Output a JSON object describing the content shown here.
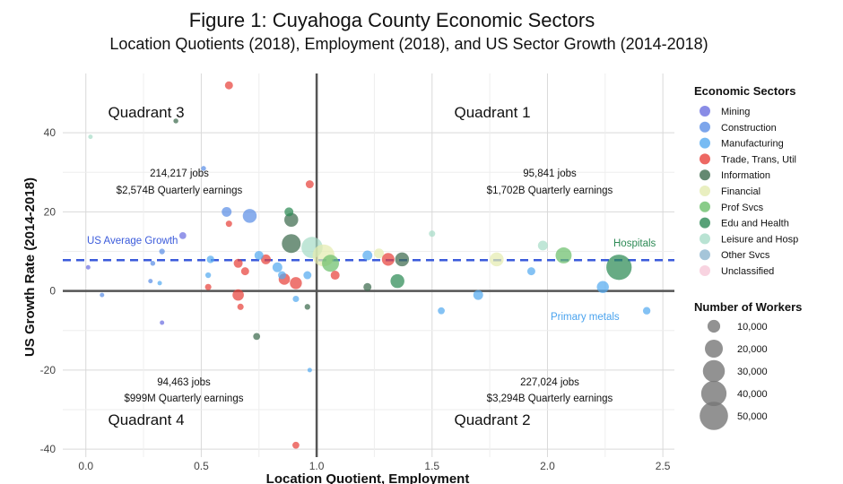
{
  "title": "Figure 1: Cuyahoga County Economic Sectors",
  "subtitle": "Location Quotients (2018), Employment (2018), and US Sector Growth (2014-2018)",
  "quadrants": {
    "q1": {
      "label": "Quadrant 1",
      "jobs": "95,841 jobs",
      "earnings": "$1,702B Quarterly earnings"
    },
    "q2": {
      "label": "Quadrant 2",
      "jobs": "227,024 jobs",
      "earnings": "$3,294B Quarterly earnings"
    },
    "q3": {
      "label": "Quadrant 3",
      "jobs": "214,217 jobs",
      "earnings": "$2,574B Quarterly earnings"
    },
    "q4": {
      "label": "Quadrant 4",
      "jobs": "94,463 jobs",
      "earnings": "$999M Quarterly earnings"
    }
  },
  "annotations": {
    "us_average": "US Average Growth",
    "hospitals": "Hospitals",
    "primary_metals": "Primary metals"
  },
  "legend": {
    "sectors_title": "Economic Sectors",
    "size_title": "Number of Workers"
  },
  "chart_data": {
    "type": "scatter",
    "xlabel": "Location Quotient, Employment",
    "ylabel": "US Growth Rate (2014-2018)",
    "xlim": [
      -0.1,
      2.55
    ],
    "ylim": [
      -42,
      55
    ],
    "x_ticks": [
      0.0,
      0.5,
      1.0,
      1.5,
      2.0,
      2.5
    ],
    "y_ticks": [
      -40,
      -20,
      0,
      20,
      40
    ],
    "reference_lines": {
      "x": 1.0,
      "y": 0,
      "us_average_growth": 7.8
    },
    "grid": true,
    "legend_position": "right",
    "sectors": [
      {
        "name": "Mining",
        "color": "#6c6fe0"
      },
      {
        "name": "Construction",
        "color": "#5b8fe6"
      },
      {
        "name": "Manufacturing",
        "color": "#55aaf0"
      },
      {
        "name": "Trade, Trans, Util",
        "color": "#e8423c"
      },
      {
        "name": "Information",
        "color": "#3d6b4d"
      },
      {
        "name": "Financial",
        "color": "#e4ebb0"
      },
      {
        "name": "Prof Svcs",
        "color": "#6cbf6c"
      },
      {
        "name": "Edu and Health",
        "color": "#2d8a55"
      },
      {
        "name": "Leisure and Hosp",
        "color": "#a8dcc8"
      },
      {
        "name": "Other Svcs",
        "color": "#8fb7d0"
      },
      {
        "name": "Unclassified",
        "color": "#f6c8d8"
      }
    ],
    "size_legend": [
      10000,
      20000,
      30000,
      40000,
      50000
    ],
    "size_labels": [
      "10,000",
      "20,000",
      "30,000",
      "40,000",
      "50,000"
    ],
    "points": [
      {
        "s": 3,
        "x": 0.62,
        "y": 52,
        "w": 4000
      },
      {
        "s": 4,
        "x": 0.39,
        "y": 43,
        "w": 1500
      },
      {
        "s": 8,
        "x": 0.02,
        "y": 39,
        "w": 800
      },
      {
        "s": 1,
        "x": 0.51,
        "y": 31,
        "w": 1500
      },
      {
        "s": 3,
        "x": 0.97,
        "y": 27,
        "w": 4000
      },
      {
        "s": 1,
        "x": 0.61,
        "y": 20,
        "w": 6000
      },
      {
        "s": 1,
        "x": 0.71,
        "y": 19,
        "w": 12000
      },
      {
        "s": 4,
        "x": 0.89,
        "y": 18,
        "w": 12000
      },
      {
        "s": 7,
        "x": 0.88,
        "y": 20,
        "w": 5000
      },
      {
        "s": 3,
        "x": 0.62,
        "y": 17,
        "w": 2500
      },
      {
        "s": 0,
        "x": 0.42,
        "y": 14,
        "w": 3000
      },
      {
        "s": 8,
        "x": 1.5,
        "y": 14.5,
        "w": 2500
      },
      {
        "s": 4,
        "x": 0.89,
        "y": 12,
        "w": 22000
      },
      {
        "s": 8,
        "x": 0.98,
        "y": 11,
        "w": 28000
      },
      {
        "s": 5,
        "x": 1.03,
        "y": 9,
        "w": 30000
      },
      {
        "s": 6,
        "x": 1.06,
        "y": 7,
        "w": 18000
      },
      {
        "s": 8,
        "x": 1.98,
        "y": 11.5,
        "w": 6000
      },
      {
        "s": 6,
        "x": 2.07,
        "y": 9,
        "w": 16000
      },
      {
        "s": 7,
        "x": 2.31,
        "y": 6,
        "w": 40000
      },
      {
        "s": 5,
        "x": 1.78,
        "y": 8,
        "w": 12000
      },
      {
        "s": 5,
        "x": 1.27,
        "y": 9.5,
        "w": 6000
      },
      {
        "s": 3,
        "x": 1.31,
        "y": 8,
        "w": 10000
      },
      {
        "s": 4,
        "x": 1.37,
        "y": 8,
        "w": 12000
      },
      {
        "s": 2,
        "x": 1.22,
        "y": 9,
        "w": 6000
      },
      {
        "s": 3,
        "x": 0.78,
        "y": 8,
        "w": 6000
      },
      {
        "s": 2,
        "x": 0.75,
        "y": 9,
        "w": 5000
      },
      {
        "s": 3,
        "x": 0.66,
        "y": 7,
        "w": 5000
      },
      {
        "s": 2,
        "x": 0.54,
        "y": 8,
        "w": 3500
      },
      {
        "s": 3,
        "x": 0.69,
        "y": 5,
        "w": 4000
      },
      {
        "s": 2,
        "x": 0.83,
        "y": 6,
        "w": 6000
      },
      {
        "s": 3,
        "x": 0.86,
        "y": 3,
        "w": 8000
      },
      {
        "s": 3,
        "x": 0.91,
        "y": 2,
        "w": 9000
      },
      {
        "s": 2,
        "x": 0.85,
        "y": 4,
        "w": 4000
      },
      {
        "s": 3,
        "x": 1.08,
        "y": 4,
        "w": 5000
      },
      {
        "s": 2,
        "x": 0.96,
        "y": 4,
        "w": 4000
      },
      {
        "s": 1,
        "x": 0.33,
        "y": 10,
        "w": 2000
      },
      {
        "s": 1,
        "x": 0.29,
        "y": 7,
        "w": 1500
      },
      {
        "s": 2,
        "x": 0.53,
        "y": 4,
        "w": 2000
      },
      {
        "s": 3,
        "x": 0.53,
        "y": 1,
        "w": 2500
      },
      {
        "s": 1,
        "x": 0.28,
        "y": 2.5,
        "w": 1000
      },
      {
        "s": 2,
        "x": 0.32,
        "y": 2,
        "w": 1000
      },
      {
        "s": 4,
        "x": 1.22,
        "y": 1,
        "w": 4000
      },
      {
        "s": 7,
        "x": 1.35,
        "y": 2.5,
        "w": 12000
      },
      {
        "s": 3,
        "x": 0.66,
        "y": -1,
        "w": 8000
      },
      {
        "s": 3,
        "x": 0.67,
        "y": -4,
        "w": 2500
      },
      {
        "s": 2,
        "x": 0.91,
        "y": -2,
        "w": 2500
      },
      {
        "s": 2,
        "x": 1.54,
        "y": -5,
        "w": 3000
      },
      {
        "s": 2,
        "x": 1.7,
        "y": -1,
        "w": 6000
      },
      {
        "s": 2,
        "x": 1.93,
        "y": 5,
        "w": 4000
      },
      {
        "s": 2,
        "x": 2.24,
        "y": 1,
        "w": 9000
      },
      {
        "s": 2,
        "x": 2.43,
        "y": -5,
        "w": 3500
      },
      {
        "s": 1,
        "x": 0.07,
        "y": -1,
        "w": 1000
      },
      {
        "s": 0,
        "x": 0.33,
        "y": -8,
        "w": 1000
      },
      {
        "s": 4,
        "x": 0.74,
        "y": -11.5,
        "w": 3000
      },
      {
        "s": 4,
        "x": 0.96,
        "y": -4,
        "w": 2000
      },
      {
        "s": 2,
        "x": 0.97,
        "y": -20,
        "w": 1000
      },
      {
        "s": 3,
        "x": 0.91,
        "y": -39,
        "w": 3000
      },
      {
        "s": 0,
        "x": 0.01,
        "y": 6,
        "w": 800
      }
    ]
  }
}
